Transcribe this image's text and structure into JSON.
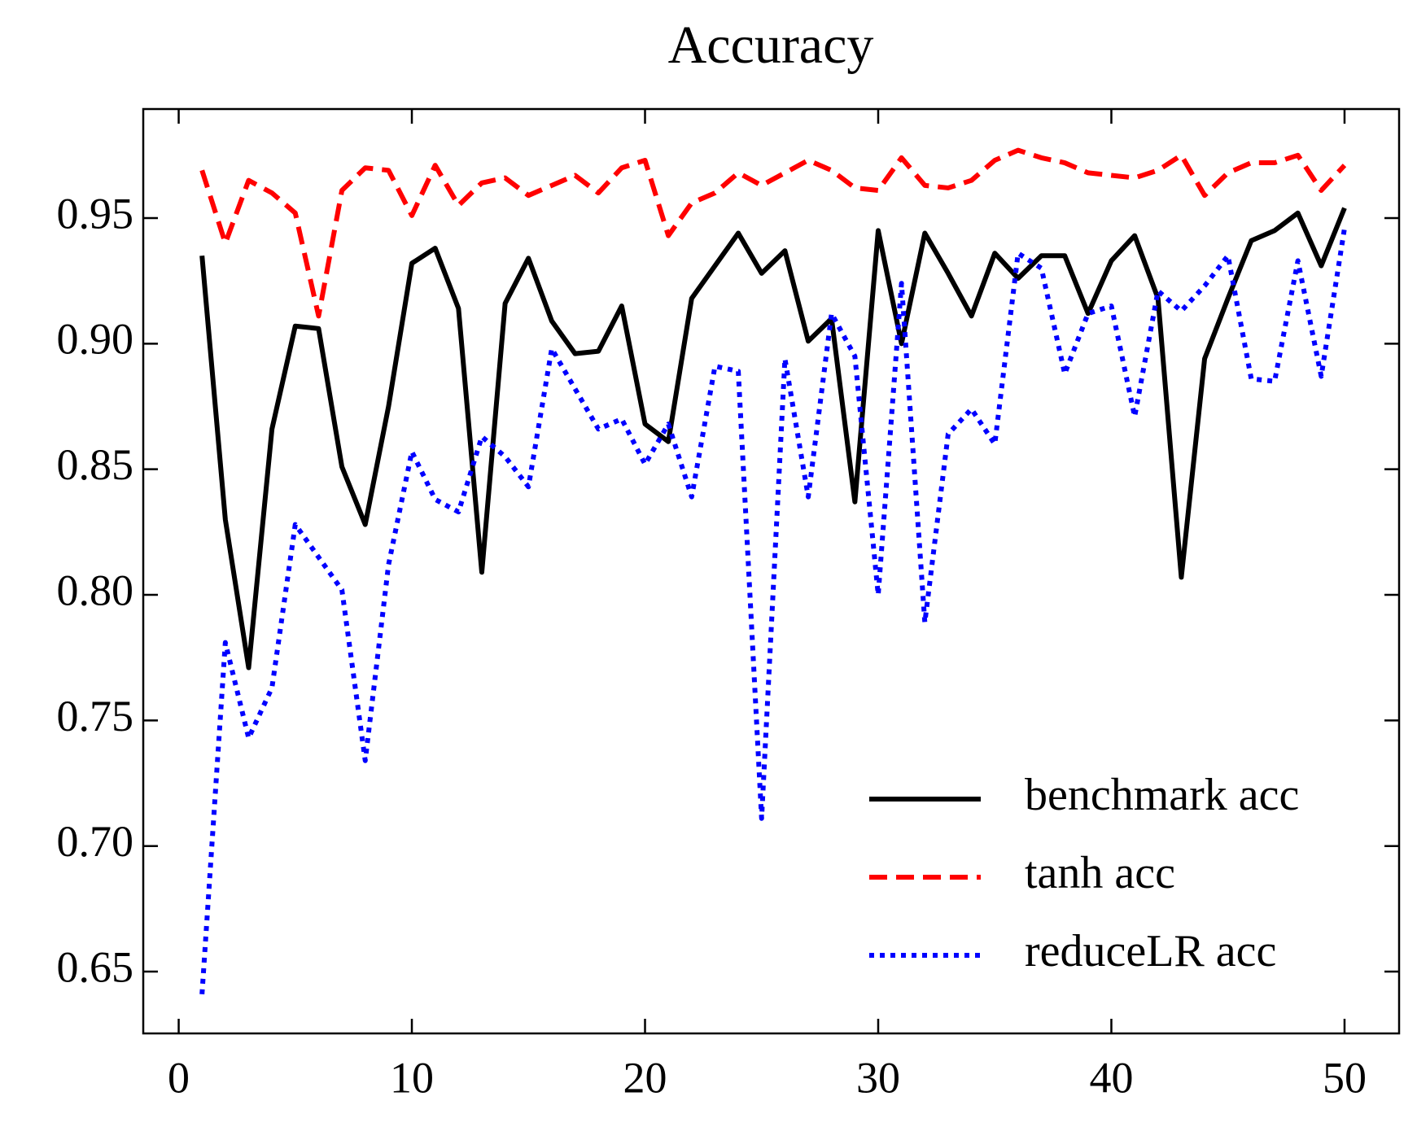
{
  "chart_data": {
    "type": "line",
    "title": "Accuracy",
    "x": [
      1,
      2,
      3,
      4,
      5,
      6,
      7,
      8,
      9,
      10,
      11,
      12,
      13,
      14,
      15,
      16,
      17,
      18,
      19,
      20,
      21,
      22,
      23,
      24,
      25,
      26,
      27,
      28,
      29,
      30,
      31,
      32,
      33,
      34,
      35,
      36,
      37,
      38,
      39,
      40,
      41,
      42,
      43,
      44,
      45,
      46,
      47,
      48,
      49,
      50
    ],
    "series": [
      {
        "name": "benchmark acc",
        "color": "#000000",
        "dash": "solid",
        "values": [
          0.935,
          0.83,
          0.771,
          0.866,
          0.907,
          0.906,
          0.851,
          0.828,
          0.875,
          0.932,
          0.938,
          0.914,
          0.809,
          0.916,
          0.934,
          0.909,
          0.896,
          0.897,
          0.915,
          0.868,
          0.861,
          0.918,
          0.931,
          0.944,
          0.928,
          0.937,
          0.901,
          0.91,
          0.837,
          0.945,
          0.9,
          0.944,
          0.928,
          0.911,
          0.936,
          0.926,
          0.935,
          0.935,
          0.912,
          0.933,
          0.943,
          0.918,
          0.807,
          0.894,
          0.918,
          0.941,
          0.945,
          0.952,
          0.931,
          0.954
        ]
      },
      {
        "name": "tanh acc",
        "color": "#ff0000",
        "dash": "dashed",
        "values": [
          0.969,
          0.94,
          0.965,
          0.96,
          0.952,
          0.911,
          0.961,
          0.97,
          0.969,
          0.951,
          0.971,
          0.955,
          0.964,
          0.966,
          0.959,
          0.963,
          0.967,
          0.96,
          0.97,
          0.973,
          0.943,
          0.956,
          0.96,
          0.968,
          0.963,
          0.968,
          0.973,
          0.969,
          0.962,
          0.961,
          0.974,
          0.963,
          0.962,
          0.965,
          0.973,
          0.977,
          0.974,
          0.972,
          0.968,
          0.967,
          0.966,
          0.969,
          0.975,
          0.959,
          0.968,
          0.972,
          0.972,
          0.975,
          0.961,
          0.971
        ]
      },
      {
        "name": "reduceLR acc",
        "color": "#0000ff",
        "dash": "dotted",
        "values": [
          0.641,
          0.781,
          0.743,
          0.763,
          0.828,
          0.815,
          0.802,
          0.734,
          0.812,
          0.857,
          0.838,
          0.833,
          0.863,
          0.855,
          0.843,
          0.898,
          0.882,
          0.866,
          0.87,
          0.852,
          0.868,
          0.839,
          0.891,
          0.889,
          0.711,
          0.894,
          0.839,
          0.912,
          0.895,
          0.8,
          0.924,
          0.789,
          0.864,
          0.874,
          0.86,
          0.936,
          0.93,
          0.888,
          0.912,
          0.915,
          0.871,
          0.921,
          0.913,
          0.923,
          0.935,
          0.886,
          0.885,
          0.933,
          0.887,
          0.946
        ]
      }
    ],
    "xlim": [
      -1.52,
      52.34
    ],
    "ylim": [
      0.6254,
      0.9934
    ],
    "xticks": [
      0,
      10,
      20,
      30,
      40,
      50
    ],
    "yticks": [
      0.65,
      {
        "value": 0.7,
        "label": "0.70"
      },
      0.75,
      {
        "value": 0.8,
        "label": "0.80"
      },
      0.85,
      {
        "value": 0.9,
        "label": "0.90"
      },
      0.95
    ],
    "grid": false,
    "legend": "lower right"
  }
}
